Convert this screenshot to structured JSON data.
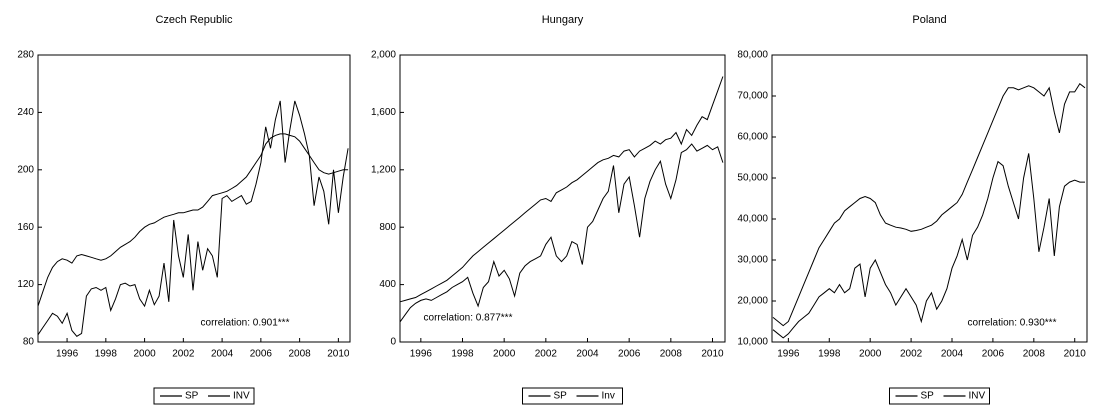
{
  "chart_data": [
    {
      "type": "line",
      "title": "Czech Republic",
      "annotation": "correlation: 0.901***",
      "xlim": [
        1994.5,
        2010.6
      ],
      "ylim": [
        80,
        280
      ],
      "xticks": [
        1996,
        1998,
        2000,
        2002,
        2004,
        2006,
        2008,
        2010
      ],
      "yticks": [
        80,
        120,
        160,
        200,
        240,
        280
      ],
      "x": [
        1994.5,
        1994.75,
        1995,
        1995.25,
        1995.5,
        1995.75,
        1996,
        1996.25,
        1996.5,
        1996.75,
        1997,
        1997.25,
        1997.5,
        1997.75,
        1998,
        1998.25,
        1998.5,
        1998.75,
        1999,
        1999.25,
        1999.5,
        1999.75,
        2000,
        2000.25,
        2000.5,
        2000.75,
        2001,
        2001.25,
        2001.5,
        2001.75,
        2002,
        2002.25,
        2002.5,
        2002.75,
        2003,
        2003.25,
        2003.5,
        2003.75,
        2004,
        2004.25,
        2004.5,
        2004.75,
        2005,
        2005.25,
        2005.5,
        2005.75,
        2006,
        2006.25,
        2006.5,
        2006.75,
        2007,
        2007.25,
        2007.5,
        2007.75,
        2008,
        2008.25,
        2008.5,
        2008.75,
        2009,
        2009.25,
        2009.5,
        2009.75,
        2010,
        2010.25,
        2010.5
      ],
      "series": [
        {
          "name": "SP",
          "color": "#000000",
          "values": [
            85,
            90,
            95,
            100,
            98,
            93,
            100,
            88,
            84,
            86,
            112,
            117,
            118,
            116,
            118,
            102,
            110,
            120,
            121,
            119,
            120,
            110,
            105,
            116,
            106,
            112,
            135,
            108,
            165,
            140,
            125,
            155,
            116,
            150,
            130,
            145,
            140,
            125,
            180,
            182,
            178,
            180,
            182,
            176,
            178,
            190,
            205,
            230,
            215,
            235,
            248,
            205,
            228,
            248,
            238,
            225,
            210,
            175,
            195,
            185,
            162,
            200,
            170,
            195,
            215
          ]
        },
        {
          "name": "INV",
          "color": "#000000",
          "values": [
            105,
            115,
            125,
            132,
            136,
            138,
            137,
            135,
            140,
            141,
            140,
            139,
            138,
            137,
            138,
            140,
            143,
            146,
            148,
            150,
            153,
            157,
            160,
            162,
            163,
            165,
            167,
            168,
            169,
            170,
            170,
            171,
            172,
            172,
            174,
            178,
            182,
            183,
            184,
            185,
            187,
            189,
            192,
            195,
            200,
            205,
            210,
            218,
            222,
            224,
            225,
            225,
            224,
            223,
            220,
            215,
            210,
            205,
            200,
            198,
            197,
            198,
            199,
            200,
            200
          ]
        }
      ]
    },
    {
      "type": "line",
      "title": "Hungary",
      "annotation": "correlation: 0.877***",
      "xlim": [
        1995,
        2010.6
      ],
      "ylim": [
        0,
        2000
      ],
      "xticks": [
        1996,
        1998,
        2000,
        2002,
        2004,
        2006,
        2008,
        2010
      ],
      "yticks": [
        0,
        400,
        800,
        {
          "value": 1200,
          "label": "1,200"
        },
        {
          "value": 1600,
          "label": "1,600"
        },
        {
          "value": 2000,
          "label": "2,000"
        }
      ],
      "x": [
        1995,
        1995.25,
        1995.5,
        1995.75,
        1996,
        1996.25,
        1996.5,
        1996.75,
        1997,
        1997.25,
        1997.5,
        1997.75,
        1998,
        1998.25,
        1998.5,
        1998.75,
        1999,
        1999.25,
        1999.5,
        1999.75,
        2000,
        2000.25,
        2000.5,
        2000.75,
        2001,
        2001.25,
        2001.5,
        2001.75,
        2002,
        2002.25,
        2002.5,
        2002.75,
        2003,
        2003.25,
        2003.5,
        2003.75,
        2004,
        2004.25,
        2004.5,
        2004.75,
        2005,
        2005.25,
        2005.5,
        2005.75,
        2006,
        2006.25,
        2006.5,
        2006.75,
        2007,
        2007.25,
        2007.5,
        2007.75,
        2008,
        2008.25,
        2008.5,
        2008.75,
        2009,
        2009.25,
        2009.5,
        2009.75,
        2010,
        2010.25,
        2010.5
      ],
      "series": [
        {
          "name": "SP",
          "color": "#000000",
          "values": [
            280,
            290,
            300,
            310,
            330,
            350,
            370,
            390,
            410,
            430,
            460,
            490,
            520,
            560,
            600,
            630,
            660,
            690,
            720,
            750,
            780,
            810,
            840,
            870,
            900,
            930,
            960,
            990,
            1000,
            980,
            1040,
            1060,
            1080,
            1110,
            1130,
            1160,
            1190,
            1220,
            1250,
            1270,
            1280,
            1300,
            1290,
            1330,
            1340,
            1290,
            1330,
            1350,
            1370,
            1400,
            1380,
            1410,
            1420,
            1460,
            1380,
            1480,
            1440,
            1510,
            1570,
            1550,
            1650,
            1750,
            1850
          ]
        },
        {
          "name": "Inv",
          "color": "#000000",
          "values": [
            140,
            190,
            240,
            270,
            290,
            300,
            290,
            310,
            330,
            350,
            380,
            400,
            420,
            450,
            340,
            250,
            380,
            420,
            560,
            460,
            500,
            440,
            320,
            480,
            530,
            560,
            580,
            600,
            680,
            730,
            600,
            560,
            600,
            700,
            680,
            540,
            800,
            840,
            920,
            1000,
            1050,
            1230,
            900,
            1100,
            1150,
            950,
            730,
            1000,
            1120,
            1200,
            1260,
            1100,
            1000,
            1130,
            1320,
            1340,
            1380,
            1330,
            1350,
            1370,
            1340,
            1360,
            1250
          ]
        }
      ]
    },
    {
      "type": "line",
      "title": "Poland",
      "annotation": "correlation: 0.930***",
      "xlim": [
        1995.2,
        2010.6
      ],
      "ylim": [
        10000,
        80000
      ],
      "xticks": [
        1996,
        1998,
        2000,
        2002,
        2004,
        2006,
        2008,
        2010
      ],
      "yticks": [
        {
          "value": 10000,
          "label": "10,000"
        },
        {
          "value": 20000,
          "label": "20,000"
        },
        {
          "value": 30000,
          "label": "30,000"
        },
        {
          "value": 40000,
          "label": "40,000"
        },
        {
          "value": 50000,
          "label": "50,000"
        },
        {
          "value": 60000,
          "label": "60,000"
        },
        {
          "value": 70000,
          "label": "70,000"
        },
        {
          "value": 80000,
          "label": "80,000"
        }
      ],
      "x": [
        1995.25,
        1995.5,
        1995.75,
        1996,
        1996.25,
        1996.5,
        1996.75,
        1997,
        1997.25,
        1997.5,
        1997.75,
        1998,
        1998.25,
        1998.5,
        1998.75,
        1999,
        1999.25,
        1999.5,
        1999.75,
        2000,
        2000.25,
        2000.5,
        2000.75,
        2001,
        2001.25,
        2001.5,
        2001.75,
        2002,
        2002.25,
        2002.5,
        2002.75,
        2003,
        2003.25,
        2003.5,
        2003.75,
        2004,
        2004.25,
        2004.5,
        2004.75,
        2005,
        2005.25,
        2005.5,
        2005.75,
        2006,
        2006.25,
        2006.5,
        2006.75,
        2007,
        2007.25,
        2007.5,
        2007.75,
        2008,
        2008.25,
        2008.5,
        2008.75,
        2009,
        2009.25,
        2009.5,
        2009.75,
        2010,
        2010.25,
        2010.5
      ],
      "series": [
        {
          "name": "SP",
          "color": "#000000",
          "values": [
            16000,
            15000,
            14000,
            15000,
            18000,
            21000,
            24000,
            27000,
            30000,
            33000,
            35000,
            37000,
            39000,
            40000,
            42000,
            43000,
            44000,
            45000,
            45500,
            45000,
            44000,
            41000,
            39000,
            38500,
            38000,
            37800,
            37500,
            37000,
            37200,
            37500,
            38000,
            38500,
            39500,
            41000,
            42000,
            43000,
            44000,
            46000,
            49000,
            52000,
            55000,
            58000,
            61000,
            64000,
            67000,
            70000,
            72000,
            72000,
            71500,
            72000,
            72500,
            72000,
            71000,
            70000,
            72000,
            66000,
            61000,
            68000,
            71000,
            71000,
            73000,
            72000
          ]
        },
        {
          "name": "INV",
          "color": "#000000",
          "values": [
            13000,
            12000,
            11000,
            12000,
            13500,
            15000,
            16000,
            17000,
            19000,
            21000,
            22000,
            23000,
            22000,
            24000,
            22000,
            23000,
            28000,
            29000,
            21000,
            28000,
            30000,
            27000,
            24000,
            22000,
            19000,
            21000,
            23000,
            21000,
            19000,
            15000,
            20000,
            22000,
            18000,
            20000,
            23000,
            28000,
            31000,
            35000,
            30000,
            36000,
            38000,
            41000,
            45000,
            50000,
            54000,
            53000,
            48000,
            44000,
            40000,
            50000,
            56000,
            45000,
            32000,
            38000,
            45000,
            31000,
            43000,
            48000,
            49000,
            49500,
            49000,
            49000
          ]
        }
      ]
    }
  ]
}
